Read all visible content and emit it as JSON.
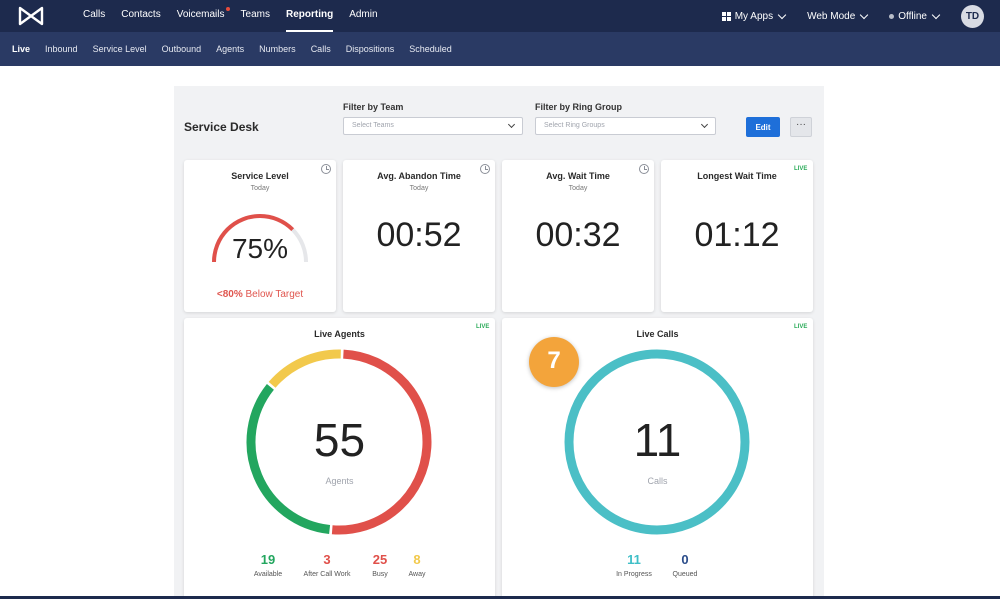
{
  "topbar": {
    "nav": [
      {
        "label": "Calls"
      },
      {
        "label": "Contacts"
      },
      {
        "label": "Voicemails",
        "has_notification": true
      },
      {
        "label": "Teams"
      },
      {
        "label": "Reporting",
        "active": true
      },
      {
        "label": "Admin"
      }
    ],
    "my_apps": "My Apps",
    "web_mode": "Web Mode",
    "status": "Offline",
    "avatar_initials": "TD"
  },
  "subnav": [
    {
      "label": "Live",
      "active": true
    },
    {
      "label": "Inbound"
    },
    {
      "label": "Service Level"
    },
    {
      "label": "Outbound"
    },
    {
      "label": "Agents"
    },
    {
      "label": "Numbers"
    },
    {
      "label": "Calls"
    },
    {
      "label": "Dispositions"
    },
    {
      "label": "Scheduled"
    }
  ],
  "dashboard": {
    "title": "Service Desk",
    "filter_team": {
      "label": "Filter by Team",
      "placeholder": "Select Teams"
    },
    "filter_ring_group": {
      "label": "Filter by Ring Group",
      "placeholder": "Select Ring Groups"
    },
    "edit_label": "Edit",
    "more_label": "···"
  },
  "cards": {
    "service_level": {
      "title": "Service Level",
      "sub": "Today",
      "value": "75%",
      "percent": 75,
      "note_strong": "<80%",
      "note": " Below Target"
    },
    "avg_abandon": {
      "title": "Avg. Abandon Time",
      "sub": "Today",
      "value": "00:52"
    },
    "avg_wait": {
      "title": "Avg. Wait Time",
      "sub": "Today",
      "value": "00:32"
    },
    "longest_wait": {
      "title": "Longest Wait Time",
      "live": "LIVE",
      "value": "01:12"
    },
    "live_agents": {
      "title": "Live Agents",
      "live": "LIVE",
      "value": "55",
      "unit": "Agents",
      "stats": [
        {
          "value": "19",
          "label": "Available",
          "color": "#23a65f"
        },
        {
          "value": "3",
          "label": "After Call Work",
          "color": "#e0504a"
        },
        {
          "value": "25",
          "label": "Busy",
          "color": "#e0504a"
        },
        {
          "value": "8",
          "label": "Away",
          "color": "#f2c94c"
        }
      ]
    },
    "live_calls": {
      "title": "Live Calls",
      "live": "LIVE",
      "value": "11",
      "unit": "Calls",
      "badge": "7",
      "stats": [
        {
          "value": "11",
          "label": "In Progress",
          "color": "#3fbfc7"
        },
        {
          "value": "0",
          "label": "Queued",
          "color": "#2a4c8a"
        }
      ]
    }
  },
  "colors": {
    "nav_bg": "#1d2a4d",
    "subnav_bg": "#2a3a64",
    "accent": "#1e6fd9",
    "green": "#23a65f",
    "red": "#e0504a",
    "yellow": "#f2c94c",
    "teal": "#4bbfc6",
    "orange": "#f3a43b"
  }
}
